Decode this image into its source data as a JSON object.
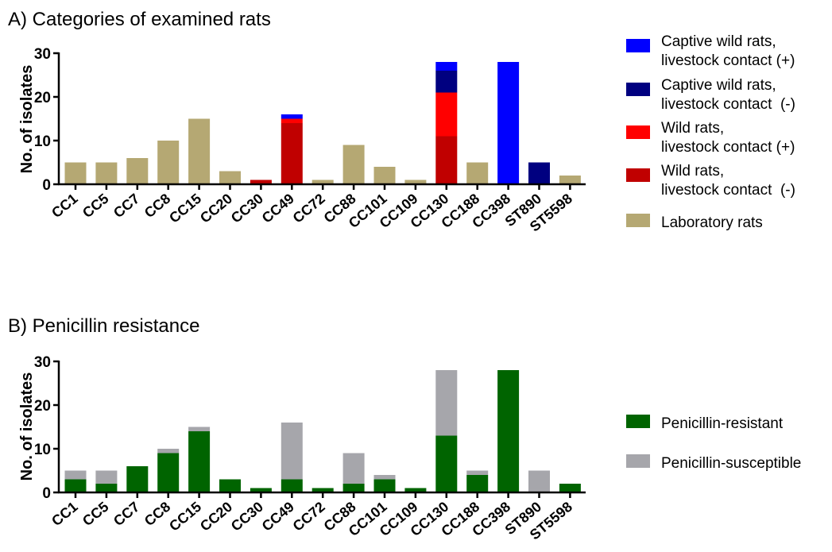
{
  "colors": {
    "captive_pos": "#0000ff",
    "captive_neg": "#000080",
    "wild_pos": "#ff0000",
    "wild_neg": "#c00000",
    "lab": "#b5a873",
    "resistant": "#006400",
    "susceptible": "#a6a6ab"
  },
  "chart_data": [
    {
      "type": "bar",
      "stacked": true,
      "title": "A) Categories of examined rats",
      "xlabel": "",
      "ylabel": "No. of isolates",
      "ylim": [
        0,
        30
      ],
      "yticks": [
        0,
        10,
        20,
        30
      ],
      "categories": [
        "CC1",
        "CC5",
        "CC7",
        "CC8",
        "CC15",
        "CC20",
        "CC30",
        "CC49",
        "CC72",
        "CC88",
        "CC101",
        "CC109",
        "CC130",
        "CC188",
        "CC398",
        "ST890",
        "ST5598"
      ],
      "legend_position": "right",
      "series": [
        {
          "name": "Laboratory rats",
          "label_lines": [
            "Laboratory rats"
          ],
          "color_key": "lab",
          "values": [
            5,
            5,
            6,
            10,
            15,
            3,
            0,
            0,
            1,
            9,
            4,
            1,
            0,
            5,
            0,
            0,
            2
          ]
        },
        {
          "name": "Wild rats, livestock contact (-)",
          "label_lines": [
            "Wild rats,",
            "livestock contact  (-)"
          ],
          "color_key": "wild_neg",
          "values": [
            0,
            0,
            0,
            0,
            0,
            0,
            1,
            14,
            0,
            0,
            0,
            0,
            11,
            0,
            0,
            0,
            0
          ]
        },
        {
          "name": "Wild rats, livestock contact (+)",
          "label_lines": [
            "Wild rats,",
            "livestock contact (+)"
          ],
          "color_key": "wild_pos",
          "values": [
            0,
            0,
            0,
            0,
            0,
            0,
            0,
            1,
            0,
            0,
            0,
            0,
            10,
            0,
            0,
            0,
            0
          ]
        },
        {
          "name": "Captive wild rats, livestock contact (-)",
          "label_lines": [
            "Captive wild rats,",
            "livestock contact  (-)"
          ],
          "color_key": "captive_neg",
          "values": [
            0,
            0,
            0,
            0,
            0,
            0,
            0,
            0,
            0,
            0,
            0,
            0,
            5,
            0,
            0,
            5,
            0
          ]
        },
        {
          "name": "Captive wild rats, livestock contact (+)",
          "label_lines": [
            "Captive wild rats,",
            "livestock contact (+)"
          ],
          "color_key": "captive_pos",
          "values": [
            0,
            0,
            0,
            0,
            0,
            0,
            0,
            1,
            0,
            0,
            0,
            0,
            2,
            0,
            28,
            0,
            0
          ]
        }
      ],
      "legend_order": [
        4,
        3,
        2,
        1,
        0
      ]
    },
    {
      "type": "bar",
      "stacked": true,
      "title": "B) Penicillin resistance",
      "xlabel": "",
      "ylabel": "No. of isolates",
      "ylim": [
        0,
        30
      ],
      "yticks": [
        0,
        10,
        20,
        30
      ],
      "categories": [
        "CC1",
        "CC5",
        "CC7",
        "CC8",
        "CC15",
        "CC20",
        "CC30",
        "CC49",
        "CC72",
        "CC88",
        "CC101",
        "CC109",
        "CC130",
        "CC188",
        "CC398",
        "ST890",
        "ST5598"
      ],
      "legend_position": "right",
      "series": [
        {
          "name": "Penicillin-resistant",
          "label_lines": [
            "Penicillin-resistant"
          ],
          "color_key": "resistant",
          "values": [
            3,
            2,
            6,
            9,
            14,
            3,
            1,
            3,
            1,
            2,
            3,
            1,
            13,
            4,
            28,
            0,
            2
          ]
        },
        {
          "name": "Penicillin-susceptible",
          "label_lines": [
            "Penicillin-susceptible"
          ],
          "color_key": "susceptible",
          "values": [
            2,
            3,
            0,
            1,
            1,
            0,
            0,
            13,
            0,
            7,
            1,
            0,
            15,
            1,
            0,
            5,
            0
          ]
        }
      ],
      "legend_order": [
        0,
        1
      ]
    }
  ]
}
